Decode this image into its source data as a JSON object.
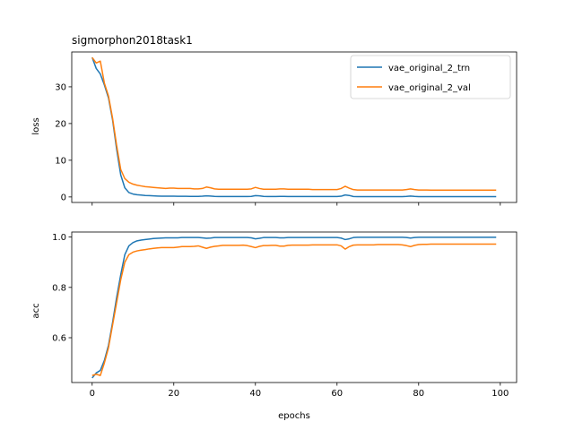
{
  "chart_data": [
    {
      "type": "line",
      "title": "sigmorphon2018task1",
      "xlabel": "",
      "ylabel": "loss",
      "xlim": [
        -5,
        104
      ],
      "ylim": [
        -1.5,
        39.5
      ],
      "xticks": [
        0,
        20,
        40,
        60,
        80,
        100
      ],
      "show_xtick_labels": false,
      "yticks": [
        0,
        10,
        20,
        30
      ],
      "grid": false,
      "legend": "top-right",
      "series": [
        {
          "name": "vae_original_2_trn",
          "color": "#1f77b4",
          "x": [
            0,
            1,
            2,
            3,
            4,
            5,
            6,
            7,
            8,
            9,
            10,
            11,
            12,
            13,
            14,
            15,
            16,
            17,
            18,
            19,
            20,
            21,
            22,
            23,
            24,
            25,
            26,
            27,
            28,
            29,
            30,
            31,
            32,
            33,
            34,
            35,
            36,
            37,
            38,
            39,
            40,
            41,
            42,
            43,
            44,
            45,
            46,
            47,
            48,
            49,
            50,
            51,
            52,
            53,
            54,
            55,
            56,
            57,
            58,
            59,
            60,
            61,
            62,
            63,
            64,
            65,
            66,
            67,
            68,
            69,
            70,
            71,
            72,
            73,
            74,
            75,
            76,
            77,
            78,
            79,
            80,
            81,
            82,
            83,
            84,
            85,
            86,
            87,
            88,
            89,
            90,
            91,
            92,
            93,
            94,
            95,
            96,
            97,
            98,
            99
          ],
          "values": [
            38,
            35,
            33.5,
            30.5,
            27,
            21,
            13,
            6,
            2.5,
            1.2,
            0.8,
            0.6,
            0.5,
            0.4,
            0.35,
            0.3,
            0.25,
            0.22,
            0.2,
            0.2,
            0.2,
            0.18,
            0.17,
            0.17,
            0.16,
            0.15,
            0.15,
            0.2,
            0.3,
            0.25,
            0.15,
            0.13,
            0.12,
            0.12,
            0.12,
            0.12,
            0.12,
            0.12,
            0.12,
            0.15,
            0.35,
            0.3,
            0.15,
            0.12,
            0.12,
            0.12,
            0.15,
            0.15,
            0.12,
            0.11,
            0.11,
            0.11,
            0.11,
            0.11,
            0.11,
            0.11,
            0.11,
            0.11,
            0.11,
            0.11,
            0.11,
            0.2,
            0.55,
            0.4,
            0.12,
            0.1,
            0.1,
            0.1,
            0.1,
            0.1,
            0.1,
            0.1,
            0.1,
            0.1,
            0.1,
            0.1,
            0.1,
            0.15,
            0.25,
            0.15,
            0.1,
            0.1,
            0.1,
            0.08,
            0.08,
            0.08,
            0.08,
            0.08,
            0.08,
            0.08,
            0.08,
            0.08,
            0.08,
            0.08,
            0.08,
            0.08,
            0.08,
            0.08,
            0.08,
            0.08
          ]
        },
        {
          "name": "vae_original_2_val",
          "color": "#ff7f0e",
          "x": [
            0,
            1,
            2,
            3,
            4,
            5,
            6,
            7,
            8,
            9,
            10,
            11,
            12,
            13,
            14,
            15,
            16,
            17,
            18,
            19,
            20,
            21,
            22,
            23,
            24,
            25,
            26,
            27,
            28,
            29,
            30,
            31,
            32,
            33,
            34,
            35,
            36,
            37,
            38,
            39,
            40,
            41,
            42,
            43,
            44,
            45,
            46,
            47,
            48,
            49,
            50,
            51,
            52,
            53,
            54,
            55,
            56,
            57,
            58,
            59,
            60,
            61,
            62,
            63,
            64,
            65,
            66,
            67,
            68,
            69,
            70,
            71,
            72,
            73,
            74,
            75,
            76,
            77,
            78,
            79,
            80,
            81,
            82,
            83,
            84,
            85,
            86,
            87,
            88,
            89,
            90,
            91,
            92,
            93,
            94,
            95,
            96,
            97,
            98,
            99
          ],
          "values": [
            38,
            36.5,
            37,
            31,
            27.5,
            21.5,
            14,
            7.5,
            5,
            4,
            3.5,
            3.2,
            3,
            2.8,
            2.7,
            2.6,
            2.5,
            2.4,
            2.3,
            2.4,
            2.4,
            2.3,
            2.3,
            2.3,
            2.3,
            2.2,
            2.2,
            2.3,
            2.7,
            2.5,
            2.2,
            2.1,
            2.1,
            2.1,
            2.1,
            2.1,
            2.1,
            2.1,
            2.1,
            2.2,
            2.6,
            2.3,
            2.1,
            2.1,
            2.1,
            2.1,
            2.2,
            2.2,
            2.1,
            2.1,
            2.1,
            2.1,
            2.1,
            2.1,
            2.0,
            2.0,
            2.0,
            2.0,
            2.0,
            2.0,
            2.0,
            2.3,
            2.9,
            2.4,
            2.0,
            1.9,
            1.9,
            1.9,
            1.9,
            1.9,
            1.9,
            1.9,
            1.9,
            1.9,
            1.9,
            1.9,
            1.9,
            2.0,
            2.2,
            2.0,
            1.9,
            1.9,
            1.9,
            1.85,
            1.85,
            1.85,
            1.85,
            1.85,
            1.85,
            1.85,
            1.85,
            1.85,
            1.85,
            1.85,
            1.85,
            1.85,
            1.85,
            1.85,
            1.85,
            1.85
          ]
        }
      ]
    },
    {
      "type": "line",
      "title": "",
      "xlabel": "epochs",
      "ylabel": "acc",
      "xlim": [
        -5,
        104
      ],
      "ylim": [
        0.422,
        1.02
      ],
      "xticks": [
        0,
        20,
        40,
        60,
        80,
        100
      ],
      "show_xtick_labels": true,
      "yticks": [
        0.6,
        0.8,
        1.0
      ],
      "ytick_labels": [
        "0.6",
        "0.8",
        "1.0"
      ],
      "grid": false,
      "series": [
        {
          "name": "vae_original_2_trn",
          "color": "#1f77b4",
          "x": [
            0,
            1,
            2,
            3,
            4,
            5,
            6,
            7,
            8,
            9,
            10,
            11,
            12,
            13,
            14,
            15,
            16,
            17,
            18,
            19,
            20,
            21,
            22,
            23,
            24,
            25,
            26,
            27,
            28,
            29,
            30,
            31,
            32,
            33,
            34,
            35,
            36,
            37,
            38,
            39,
            40,
            41,
            42,
            43,
            44,
            45,
            46,
            47,
            48,
            49,
            50,
            51,
            52,
            53,
            54,
            55,
            56,
            57,
            58,
            59,
            60,
            61,
            62,
            63,
            64,
            65,
            66,
            67,
            68,
            69,
            70,
            71,
            72,
            73,
            74,
            75,
            76,
            77,
            78,
            79,
            80,
            81,
            82,
            83,
            84,
            85,
            86,
            87,
            88,
            89,
            90,
            91,
            92,
            93,
            94,
            95,
            96,
            97,
            98,
            99
          ],
          "values": [
            0.44,
            0.46,
            0.47,
            0.51,
            0.57,
            0.66,
            0.76,
            0.85,
            0.93,
            0.965,
            0.978,
            0.985,
            0.988,
            0.99,
            0.992,
            0.994,
            0.995,
            0.996,
            0.997,
            0.997,
            0.997,
            0.997,
            0.998,
            0.998,
            0.998,
            0.998,
            0.998,
            0.997,
            0.995,
            0.996,
            0.998,
            0.998,
            0.998,
            0.998,
            0.998,
            0.998,
            0.998,
            0.998,
            0.998,
            0.997,
            0.993,
            0.995,
            0.998,
            0.998,
            0.998,
            0.998,
            0.997,
            0.997,
            0.998,
            0.998,
            0.998,
            0.998,
            0.998,
            0.998,
            0.998,
            0.998,
            0.998,
            0.998,
            0.998,
            0.998,
            0.998,
            0.996,
            0.99,
            0.993,
            0.998,
            0.999,
            0.999,
            0.999,
            0.999,
            0.999,
            0.999,
            0.999,
            0.999,
            0.999,
            0.999,
            0.999,
            0.999,
            0.998,
            0.996,
            0.998,
            0.999,
            0.999,
            0.999,
            0.999,
            0.999,
            0.999,
            0.999,
            0.999,
            0.999,
            0.999,
            0.999,
            0.999,
            0.999,
            0.999,
            0.999,
            0.999,
            0.999,
            0.999,
            0.999,
            0.999
          ]
        },
        {
          "name": "vae_original_2_val",
          "color": "#ff7f0e",
          "x": [
            0,
            1,
            2,
            3,
            4,
            5,
            6,
            7,
            8,
            9,
            10,
            11,
            12,
            13,
            14,
            15,
            16,
            17,
            18,
            19,
            20,
            21,
            22,
            23,
            24,
            25,
            26,
            27,
            28,
            29,
            30,
            31,
            32,
            33,
            34,
            35,
            36,
            37,
            38,
            39,
            40,
            41,
            42,
            43,
            44,
            45,
            46,
            47,
            48,
            49,
            50,
            51,
            52,
            53,
            54,
            55,
            56,
            57,
            58,
            59,
            60,
            61,
            62,
            63,
            64,
            65,
            66,
            67,
            68,
            69,
            70,
            71,
            72,
            73,
            74,
            75,
            76,
            77,
            78,
            79,
            80,
            81,
            82,
            83,
            84,
            85,
            86,
            87,
            88,
            89,
            90,
            91,
            92,
            93,
            94,
            95,
            96,
            97,
            98,
            99
          ],
          "values": [
            0.45,
            0.455,
            0.45,
            0.5,
            0.56,
            0.65,
            0.74,
            0.83,
            0.9,
            0.93,
            0.94,
            0.945,
            0.948,
            0.95,
            0.953,
            0.955,
            0.957,
            0.958,
            0.958,
            0.958,
            0.958,
            0.96,
            0.962,
            0.962,
            0.962,
            0.963,
            0.965,
            0.96,
            0.955,
            0.96,
            0.963,
            0.965,
            0.967,
            0.967,
            0.967,
            0.967,
            0.967,
            0.968,
            0.966,
            0.962,
            0.958,
            0.963,
            0.966,
            0.966,
            0.967,
            0.967,
            0.964,
            0.964,
            0.967,
            0.968,
            0.968,
            0.968,
            0.968,
            0.968,
            0.969,
            0.969,
            0.969,
            0.969,
            0.969,
            0.969,
            0.969,
            0.965,
            0.952,
            0.962,
            0.968,
            0.969,
            0.969,
            0.969,
            0.969,
            0.969,
            0.97,
            0.97,
            0.97,
            0.97,
            0.97,
            0.97,
            0.969,
            0.966,
            0.962,
            0.967,
            0.97,
            0.971,
            0.971,
            0.972,
            0.972,
            0.972,
            0.972,
            0.972,
            0.972,
            0.972,
            0.972,
            0.972,
            0.972,
            0.972,
            0.972,
            0.972,
            0.972,
            0.972,
            0.972,
            0.972
          ]
        }
      ]
    }
  ]
}
